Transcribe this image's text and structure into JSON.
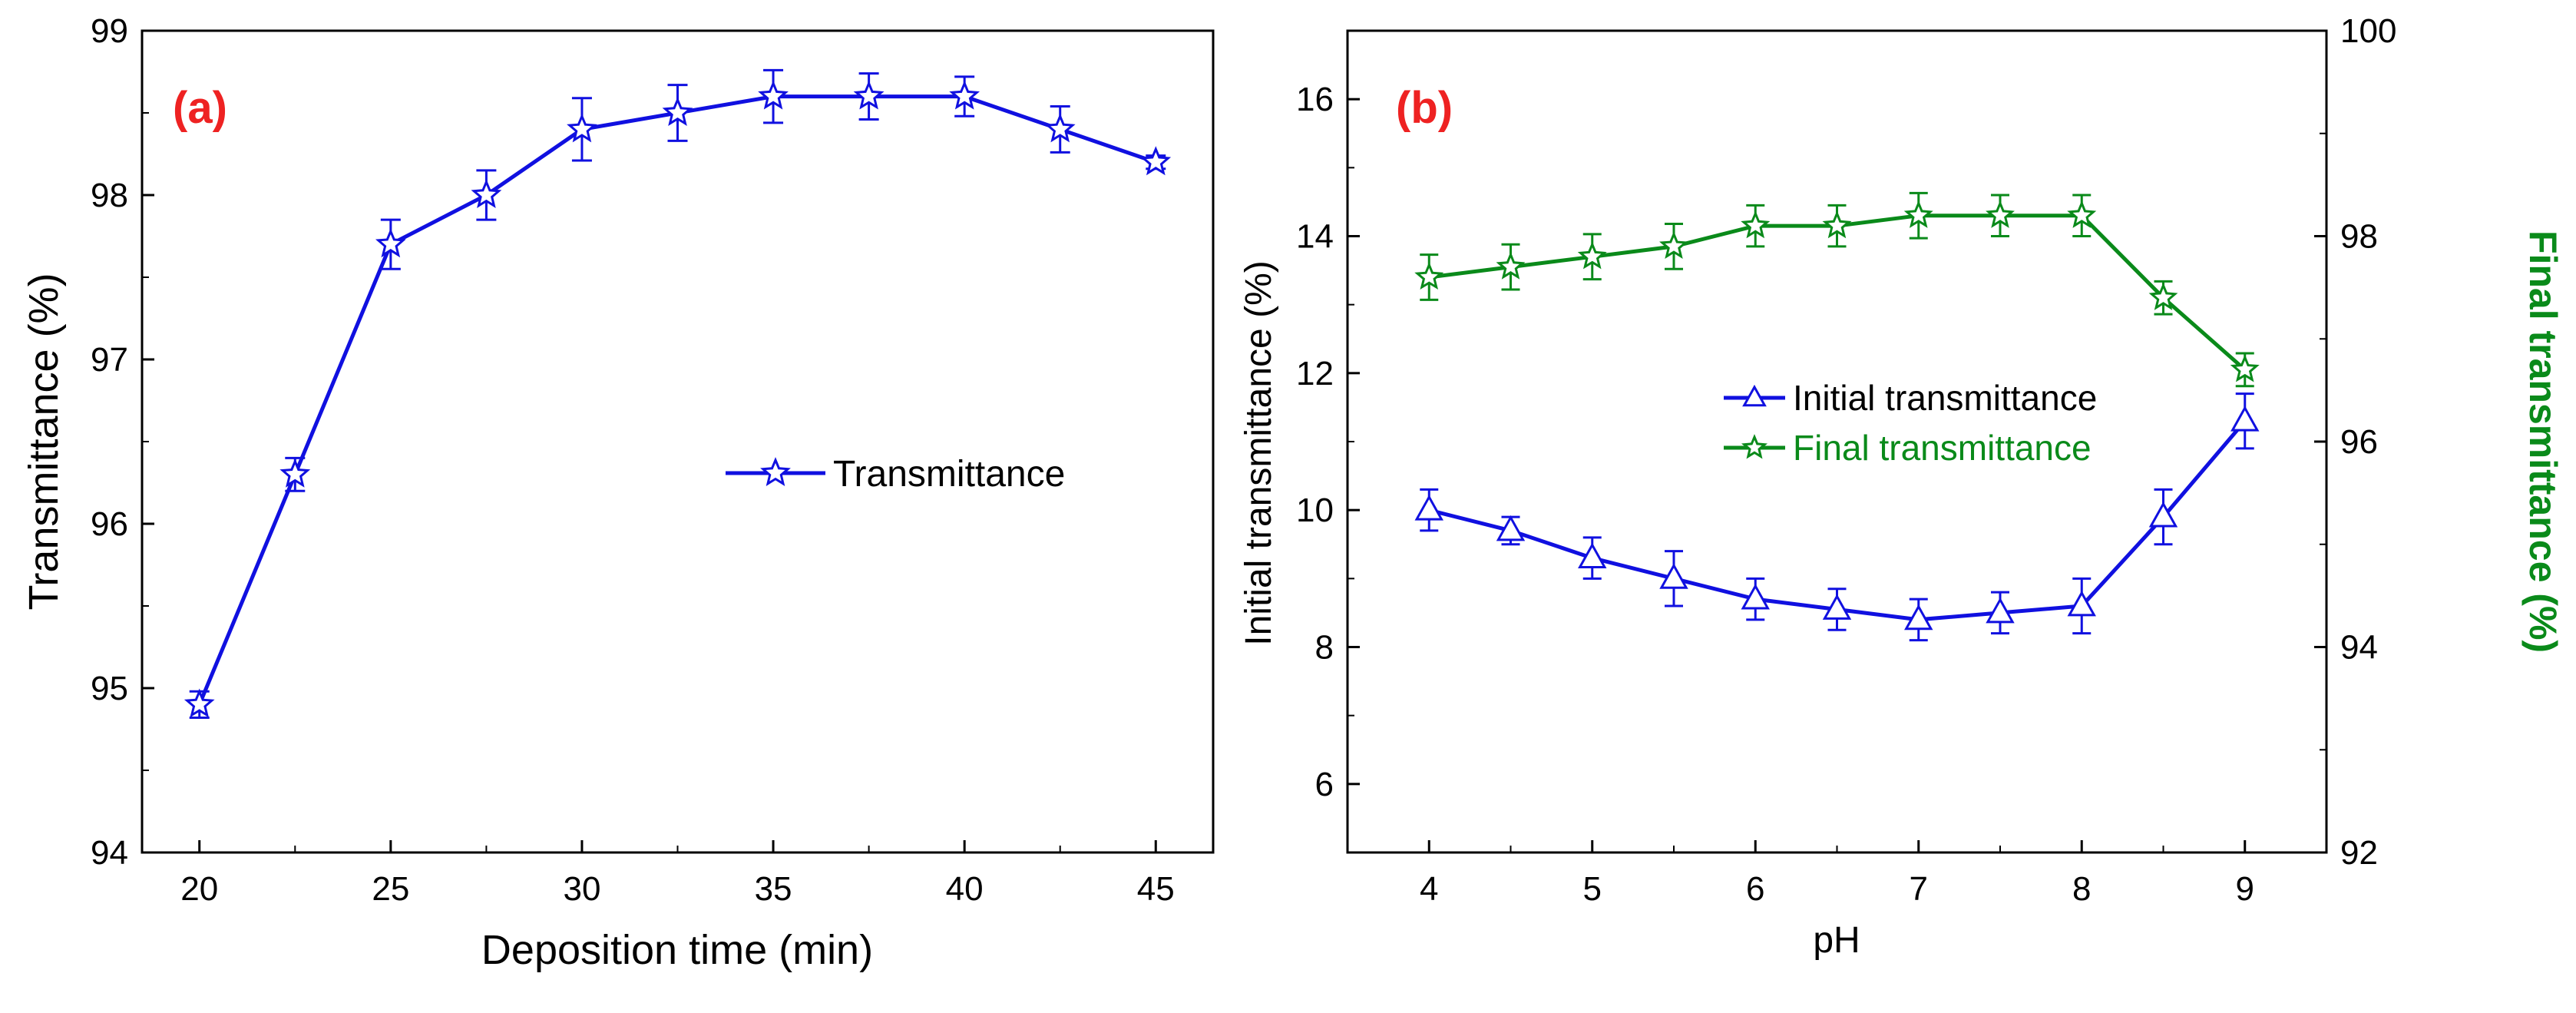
{
  "chart_data": [
    {
      "type": "line",
      "panel_label": "(a)",
      "xlabel": "Deposition time (min)",
      "ylabel": "Transmittance (%)",
      "xlim": [
        18.5,
        46.5
      ],
      "ylim": [
        94,
        99
      ],
      "xticks": [
        "20",
        "25",
        "30",
        "35",
        "40",
        "45"
      ],
      "yticks": [
        "94",
        "95",
        "96",
        "97",
        "98",
        "99"
      ],
      "legend": {
        "position": "center-right",
        "entries": [
          "Transmittance"
        ]
      },
      "series": [
        {
          "name": "Transmittance",
          "color": "#1010e0",
          "marker": "star",
          "x": [
            20,
            22.5,
            25,
            27.5,
            30,
            32.5,
            35,
            37.5,
            40,
            42.5,
            45
          ],
          "y": [
            94.9,
            96.3,
            97.7,
            98.0,
            98.4,
            98.5,
            98.6,
            98.6,
            98.6,
            98.4,
            98.2
          ],
          "err": [
            0.08,
            0.1,
            0.15,
            0.15,
            0.19,
            0.17,
            0.16,
            0.14,
            0.12,
            0.14,
            0.04
          ]
        }
      ]
    },
    {
      "type": "line",
      "panel_label": "(b)",
      "xlabel": "pH",
      "ylabel": "Initial transmittance (%)",
      "ylabel_right": "Final transmittance (%)",
      "xlim": [
        3.5,
        9.5
      ],
      "ylim": [
        5,
        17
      ],
      "ylim_right": [
        92,
        100
      ],
      "xticks": [
        "4",
        "5",
        "6",
        "7",
        "8",
        "9"
      ],
      "yticks": [
        "6",
        "8",
        "10",
        "12",
        "14",
        "16"
      ],
      "yticks_right": [
        "92",
        "94",
        "96",
        "98",
        "100"
      ],
      "legend": {
        "position": "center",
        "entries": [
          "Initial transmittance",
          "Final transmittance"
        ]
      },
      "series": [
        {
          "name": "Initial transmittance",
          "axis": "left",
          "color": "#1010e0",
          "marker": "triangle",
          "x": [
            4,
            4.5,
            5,
            5.5,
            6,
            6.5,
            7,
            7.5,
            8,
            8.5,
            9
          ],
          "y": [
            10.0,
            9.7,
            9.3,
            9.0,
            8.7,
            8.55,
            8.4,
            8.5,
            8.6,
            9.9,
            11.3
          ],
          "err": [
            0.3,
            0.2,
            0.3,
            0.4,
            0.3,
            0.3,
            0.3,
            0.3,
            0.4,
            0.4,
            0.4
          ]
        },
        {
          "name": "Final transmittance",
          "axis": "right",
          "color": "#0a8a1a",
          "marker": "star",
          "x": [
            4,
            4.5,
            5,
            5.5,
            6,
            6.5,
            7,
            7.5,
            8,
            8.5,
            9
          ],
          "y": [
            97.6,
            97.7,
            97.8,
            97.9,
            98.1,
            98.1,
            98.2,
            98.2,
            98.2,
            97.4,
            96.7
          ],
          "err": [
            0.22,
            0.22,
            0.22,
            0.22,
            0.2,
            0.2,
            0.22,
            0.2,
            0.2,
            0.16,
            0.16
          ]
        }
      ]
    }
  ],
  "colors": {
    "panel_label": "#ee2222",
    "axis": "#000000"
  }
}
